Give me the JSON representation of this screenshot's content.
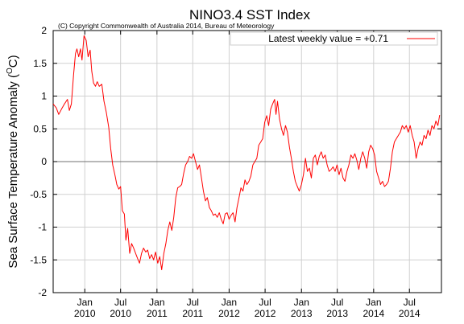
{
  "chart_data": {
    "type": "line",
    "title": "NINO3.4 SST Index",
    "subtitle": "(C) Copyright Commonwealth of Australia 2014, Bureau of Meteorology",
    "ylabel_main": "Sea Surface Temperature Anomaly (",
    "ylabel_sup": "O",
    "ylabel_end": "C)",
    "ylim": [
      -2,
      2
    ],
    "xlim": [
      "2009-07-25",
      "2014-12-10"
    ],
    "grid": true,
    "legend": {
      "position": "top-right",
      "label": "Latest weekly value = +0.71",
      "color": "#ff0000"
    },
    "yticks": [
      {
        "v": 2,
        "label": "2"
      },
      {
        "v": 1.5,
        "label": "1.5"
      },
      {
        "v": 1,
        "label": "1"
      },
      {
        "v": 0.5,
        "label": "0.5"
      },
      {
        "v": 0,
        "label": "0"
      },
      {
        "v": -0.5,
        "label": "-0.5"
      },
      {
        "v": -1,
        "label": "-1"
      },
      {
        "v": -1.5,
        "label": "-1.5"
      },
      {
        "v": -2,
        "label": "-2"
      }
    ],
    "xticks": [
      {
        "date": "2010-01-01",
        "label1": "Jan",
        "label2": "2010"
      },
      {
        "date": "2010-07-01",
        "label1": "Jul",
        "label2": "2010"
      },
      {
        "date": "2011-01-01",
        "label1": "Jan",
        "label2": "2011"
      },
      {
        "date": "2011-07-01",
        "label1": "Jul",
        "label2": "2011"
      },
      {
        "date": "2012-01-01",
        "label1": "Jan",
        "label2": "2012"
      },
      {
        "date": "2012-07-01",
        "label1": "Jul",
        "label2": "2012"
      },
      {
        "date": "2013-01-01",
        "label1": "Jan",
        "label2": "2013"
      },
      {
        "date": "2013-07-01",
        "label1": "Jul",
        "label2": "2013"
      },
      {
        "date": "2014-01-01",
        "label1": "Jan",
        "label2": "2014"
      },
      {
        "date": "2014-07-01",
        "label1": "Jul",
        "label2": "2014"
      }
    ],
    "series": [
      {
        "color": "#ff0000",
        "points": [
          [
            "2009-07-25",
            0.88
          ],
          [
            "2009-08-10",
            0.82
          ],
          [
            "2009-08-22",
            0.72
          ],
          [
            "2009-09-05",
            0.8
          ],
          [
            "2009-09-20",
            0.88
          ],
          [
            "2009-10-05",
            0.95
          ],
          [
            "2009-10-15",
            0.78
          ],
          [
            "2009-10-25",
            0.88
          ],
          [
            "2009-11-05",
            1.32
          ],
          [
            "2009-11-15",
            1.65
          ],
          [
            "2009-11-22",
            1.72
          ],
          [
            "2009-12-01",
            1.6
          ],
          [
            "2009-12-10",
            1.72
          ],
          [
            "2009-12-18",
            1.55
          ],
          [
            "2009-12-28",
            1.92
          ],
          [
            "2010-01-08",
            1.85
          ],
          [
            "2010-01-18",
            1.6
          ],
          [
            "2010-01-28",
            1.7
          ],
          [
            "2010-02-05",
            1.38
          ],
          [
            "2010-02-14",
            1.2
          ],
          [
            "2010-02-24",
            1.15
          ],
          [
            "2010-03-05",
            1.22
          ],
          [
            "2010-03-15",
            1.15
          ],
          [
            "2010-03-28",
            1.18
          ],
          [
            "2010-04-08",
            0.92
          ],
          [
            "2010-04-20",
            0.75
          ],
          [
            "2010-05-02",
            0.52
          ],
          [
            "2010-05-12",
            0.2
          ],
          [
            "2010-05-22",
            -0.05
          ],
          [
            "2010-06-02",
            -0.2
          ],
          [
            "2010-06-12",
            -0.35
          ],
          [
            "2010-06-22",
            -0.42
          ],
          [
            "2010-07-01",
            -0.38
          ],
          [
            "2010-07-10",
            -0.75
          ],
          [
            "2010-07-20",
            -0.8
          ],
          [
            "2010-07-28",
            -1.2
          ],
          [
            "2010-08-06",
            -1.02
          ],
          [
            "2010-08-16",
            -1.4
          ],
          [
            "2010-08-26",
            -1.25
          ],
          [
            "2010-09-05",
            -1.32
          ],
          [
            "2010-09-15",
            -1.4
          ],
          [
            "2010-09-25",
            -1.48
          ],
          [
            "2010-10-05",
            -1.55
          ],
          [
            "2010-10-15",
            -1.4
          ],
          [
            "2010-10-25",
            -1.32
          ],
          [
            "2010-11-05",
            -1.38
          ],
          [
            "2010-11-15",
            -1.35
          ],
          [
            "2010-11-25",
            -1.48
          ],
          [
            "2010-12-05",
            -1.42
          ],
          [
            "2010-12-15",
            -1.5
          ],
          [
            "2010-12-25",
            -1.38
          ],
          [
            "2011-01-05",
            -1.55
          ],
          [
            "2011-01-15",
            -1.45
          ],
          [
            "2011-01-25",
            -1.65
          ],
          [
            "2011-02-05",
            -1.4
          ],
          [
            "2011-02-15",
            -1.25
          ],
          [
            "2011-02-25",
            -1.05
          ],
          [
            "2011-03-07",
            -0.92
          ],
          [
            "2011-03-17",
            -1.05
          ],
          [
            "2011-03-27",
            -0.85
          ],
          [
            "2011-04-06",
            -0.55
          ],
          [
            "2011-04-16",
            -0.4
          ],
          [
            "2011-04-26",
            -0.38
          ],
          [
            "2011-05-06",
            -0.35
          ],
          [
            "2011-05-16",
            -0.18
          ],
          [
            "2011-05-26",
            -0.05
          ],
          [
            "2011-06-05",
            0.0
          ],
          [
            "2011-06-15",
            0.08
          ],
          [
            "2011-06-25",
            0.05
          ],
          [
            "2011-07-05",
            0.12
          ],
          [
            "2011-07-15",
            0.0
          ],
          [
            "2011-07-25",
            -0.12
          ],
          [
            "2011-08-04",
            -0.05
          ],
          [
            "2011-08-14",
            -0.25
          ],
          [
            "2011-08-24",
            -0.45
          ],
          [
            "2011-09-03",
            -0.6
          ],
          [
            "2011-09-13",
            -0.55
          ],
          [
            "2011-09-23",
            -0.7
          ],
          [
            "2011-10-03",
            -0.75
          ],
          [
            "2011-10-13",
            -0.82
          ],
          [
            "2011-10-23",
            -0.8
          ],
          [
            "2011-11-02",
            -0.85
          ],
          [
            "2011-11-12",
            -0.78
          ],
          [
            "2011-11-22",
            -0.88
          ],
          [
            "2011-12-02",
            -0.95
          ],
          [
            "2011-12-12",
            -0.8
          ],
          [
            "2011-12-22",
            -0.78
          ],
          [
            "2012-01-01",
            -0.88
          ],
          [
            "2012-01-11",
            -0.82
          ],
          [
            "2012-01-21",
            -0.78
          ],
          [
            "2012-01-31",
            -0.92
          ],
          [
            "2012-02-10",
            -0.7
          ],
          [
            "2012-02-20",
            -0.55
          ],
          [
            "2012-03-01",
            -0.4
          ],
          [
            "2012-03-11",
            -0.45
          ],
          [
            "2012-03-21",
            -0.28
          ],
          [
            "2012-03-31",
            -0.35
          ],
          [
            "2012-04-10",
            -0.3
          ],
          [
            "2012-04-20",
            -0.22
          ],
          [
            "2012-04-30",
            -0.05
          ],
          [
            "2012-05-10",
            0.0
          ],
          [
            "2012-05-20",
            0.05
          ],
          [
            "2012-05-30",
            0.25
          ],
          [
            "2012-06-09",
            0.3
          ],
          [
            "2012-06-19",
            0.35
          ],
          [
            "2012-06-29",
            0.6
          ],
          [
            "2012-07-09",
            0.7
          ],
          [
            "2012-07-19",
            0.55
          ],
          [
            "2012-07-29",
            0.8
          ],
          [
            "2012-08-08",
            0.88
          ],
          [
            "2012-08-18",
            0.95
          ],
          [
            "2012-08-25",
            0.72
          ],
          [
            "2012-09-02",
            0.92
          ],
          [
            "2012-09-12",
            0.65
          ],
          [
            "2012-09-22",
            0.5
          ],
          [
            "2012-10-02",
            0.4
          ],
          [
            "2012-10-12",
            0.55
          ],
          [
            "2012-10-22",
            0.45
          ],
          [
            "2012-11-01",
            0.22
          ],
          [
            "2012-11-11",
            0.05
          ],
          [
            "2012-11-21",
            -0.15
          ],
          [
            "2012-12-01",
            -0.3
          ],
          [
            "2012-12-11",
            -0.38
          ],
          [
            "2012-12-21",
            -0.45
          ],
          [
            "2013-01-01",
            -0.35
          ],
          [
            "2013-01-11",
            -0.2
          ],
          [
            "2013-01-21",
            0.05
          ],
          [
            "2013-01-31",
            -0.15
          ],
          [
            "2013-02-10",
            -0.1
          ],
          [
            "2013-02-20",
            -0.25
          ],
          [
            "2013-03-02",
            0.05
          ],
          [
            "2013-03-12",
            0.1
          ],
          [
            "2013-03-22",
            -0.05
          ],
          [
            "2013-04-01",
            0.08
          ],
          [
            "2013-04-11",
            0.15
          ],
          [
            "2013-04-21",
            0.05
          ],
          [
            "2013-05-01",
            0.1
          ],
          [
            "2013-05-11",
            -0.05
          ],
          [
            "2013-05-21",
            -0.15
          ],
          [
            "2013-05-31",
            -0.12
          ],
          [
            "2013-06-10",
            -0.08
          ],
          [
            "2013-06-20",
            -0.15
          ],
          [
            "2013-06-30",
            -0.05
          ],
          [
            "2013-07-10",
            -0.2
          ],
          [
            "2013-07-20",
            -0.1
          ],
          [
            "2013-07-30",
            -0.25
          ],
          [
            "2013-08-09",
            -0.3
          ],
          [
            "2013-08-19",
            -0.15
          ],
          [
            "2013-08-29",
            -0.05
          ],
          [
            "2013-09-08",
            0.1
          ],
          [
            "2013-09-18",
            0.05
          ],
          [
            "2013-09-28",
            0.12
          ],
          [
            "2013-10-08",
            0.02
          ],
          [
            "2013-10-18",
            -0.12
          ],
          [
            "2013-10-28",
            0.05
          ],
          [
            "2013-11-07",
            0.15
          ],
          [
            "2013-11-17",
            0.05
          ],
          [
            "2013-11-27",
            -0.1
          ],
          [
            "2013-12-07",
            0.15
          ],
          [
            "2013-12-17",
            0.25
          ],
          [
            "2013-12-27",
            0.2
          ],
          [
            "2014-01-06",
            0.1
          ],
          [
            "2014-01-16",
            -0.15
          ],
          [
            "2014-01-26",
            -0.25
          ],
          [
            "2014-02-05",
            -0.35
          ],
          [
            "2014-02-15",
            -0.3
          ],
          [
            "2014-02-25",
            -0.38
          ],
          [
            "2014-03-07",
            -0.35
          ],
          [
            "2014-03-17",
            -0.3
          ],
          [
            "2014-03-27",
            -0.1
          ],
          [
            "2014-04-06",
            0.15
          ],
          [
            "2014-04-16",
            0.3
          ],
          [
            "2014-04-26",
            0.35
          ],
          [
            "2014-05-06",
            0.4
          ],
          [
            "2014-05-16",
            0.45
          ],
          [
            "2014-05-26",
            0.55
          ],
          [
            "2014-06-05",
            0.5
          ],
          [
            "2014-06-15",
            0.55
          ],
          [
            "2014-06-25",
            0.45
          ],
          [
            "2014-07-05",
            0.55
          ],
          [
            "2014-07-15",
            0.4
          ],
          [
            "2014-07-25",
            0.3
          ],
          [
            "2014-08-04",
            0.05
          ],
          [
            "2014-08-14",
            0.2
          ],
          [
            "2014-08-24",
            0.3
          ],
          [
            "2014-09-03",
            0.25
          ],
          [
            "2014-09-13",
            0.4
          ],
          [
            "2014-09-23",
            0.35
          ],
          [
            "2014-10-03",
            0.48
          ],
          [
            "2014-10-13",
            0.4
          ],
          [
            "2014-10-23",
            0.55
          ],
          [
            "2014-11-02",
            0.5
          ],
          [
            "2014-11-12",
            0.62
          ],
          [
            "2014-11-22",
            0.55
          ],
          [
            "2014-12-01",
            0.71
          ]
        ]
      }
    ]
  }
}
